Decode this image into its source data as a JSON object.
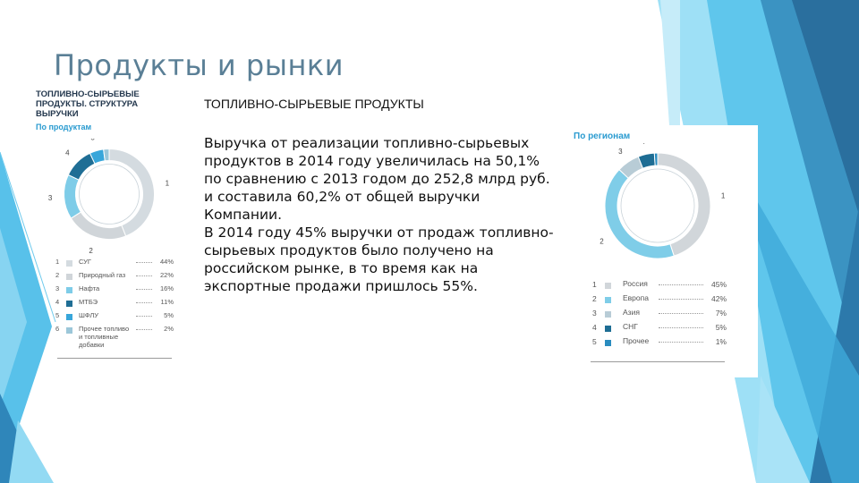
{
  "slide": {
    "title": "Продукты и рынки",
    "subheading": "ТОПЛИВНО-СЫРЬЕВЫЕ ПРОДУКТЫ",
    "body": [
      "Выручка от реализации топливно-сырьевых продуктов в 2014 году увеличилась на 50,1% по сравнению с 2013 годом до 252,8 млрд руб. и составила 60,2% от общей выручки Компании.",
      "В 2014 году 45% выручки от продаж топливно-сырьевых продуктов было получено на российском рынке, в то время как на экспортные продажи пришлось 55%."
    ]
  },
  "left_infographic": {
    "heading_lines": [
      "ТОПЛИВНО-СЫРЬЕВЫЕ",
      "ПРОДУКТЫ. СТРУКТУРА",
      "ВЫРУЧКИ"
    ],
    "subheading": "По продуктам",
    "chart_data": {
      "type": "pie",
      "categories": [
        "СУГ",
        "Природный газ",
        "Нафта",
        "МТБЭ",
        "ШФЛУ",
        "Прочее топливо и топливные добавки"
      ],
      "values": [
        44,
        22,
        16,
        11,
        5,
        2
      ],
      "value_labels": [
        "44%",
        "22%",
        "16%",
        "11%",
        "5%",
        "2%"
      ],
      "numbers": [
        "1",
        "2",
        "3",
        "4",
        "5",
        "6"
      ],
      "colors": [
        "#d4dbe0",
        "#d0d5d9",
        "#7ecce8",
        "#1f6e95",
        "#38a6da",
        "#9cc7d9"
      ]
    }
  },
  "right_infographic": {
    "subheading": "По регионам",
    "chart_data": {
      "type": "pie",
      "categories": [
        "Россия",
        "Европа",
        "Азия",
        "СНГ",
        "Прочее"
      ],
      "values": [
        45,
        42,
        7,
        5,
        1
      ],
      "value_labels": [
        "45%",
        "42%",
        "7%",
        "5%",
        "1%"
      ],
      "numbers": [
        "1",
        "2",
        "3",
        "4",
        "5"
      ],
      "colors": [
        "#d1d6da",
        "#7fcde8",
        "#b8ccd6",
        "#1e6d94",
        "#2a8cbf"
      ]
    }
  }
}
